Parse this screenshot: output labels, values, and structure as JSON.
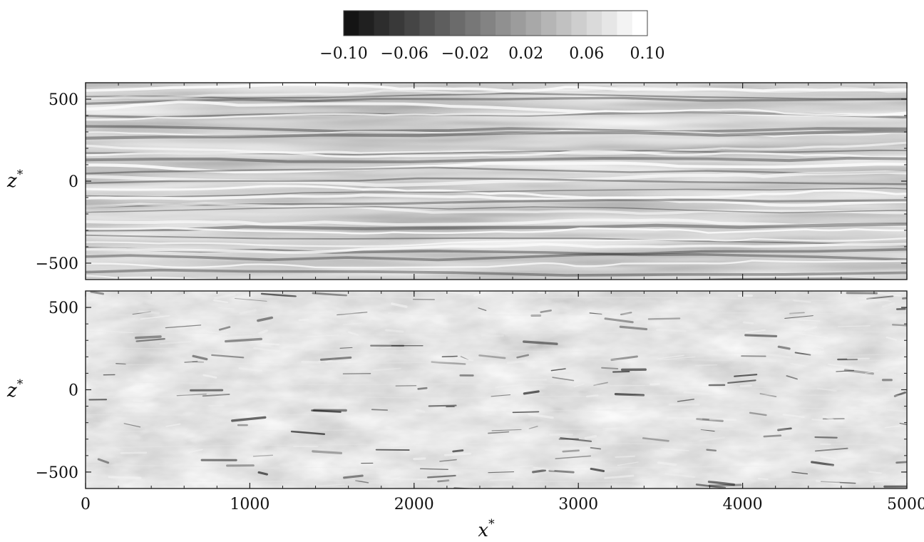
{
  "chart_data": {
    "type": "heatmap",
    "colormap": "grayscale (black low, white high)",
    "colorbar": {
      "orientation": "horizontal",
      "placement": "top",
      "range": [
        -0.1,
        0.1
      ],
      "n_levels": 20,
      "tick_values": [
        -0.1,
        -0.06,
        -0.02,
        0.02,
        0.06,
        0.1
      ],
      "tick_labels": [
        "−0.10",
        "−0.06",
        "−0.02",
        "0.02",
        "0.06",
        "0.10"
      ]
    },
    "panels": [
      {
        "id": "top",
        "ylabel": "z",
        "ylabel_sup": "*",
        "ylim": [
          -600,
          600
        ],
        "yticks": [
          -500,
          0,
          500
        ],
        "ytick_labels": [
          "−500",
          "0",
          "500"
        ],
        "xlim": [
          0,
          5000
        ],
        "xticks": [
          0,
          1000,
          2000,
          3000,
          4000,
          5000
        ],
        "pattern": "elongated streamwise streaks"
      },
      {
        "id": "bottom",
        "ylabel": "z",
        "ylabel_sup": "*",
        "ylim": [
          -600,
          600
        ],
        "yticks": [
          -500,
          0,
          500
        ],
        "ytick_labels": [
          "−500",
          "0",
          "500"
        ],
        "xlim": [
          0,
          5000
        ],
        "xticks": [
          0,
          1000,
          2000,
          3000,
          4000,
          5000
        ],
        "pattern": "small-scale patchy fluctuations"
      }
    ],
    "xlabel": "x",
    "xlabel_sup": "*",
    "xtick_labels": [
      "0",
      "1000",
      "2000",
      "3000",
      "4000",
      "5000"
    ]
  }
}
